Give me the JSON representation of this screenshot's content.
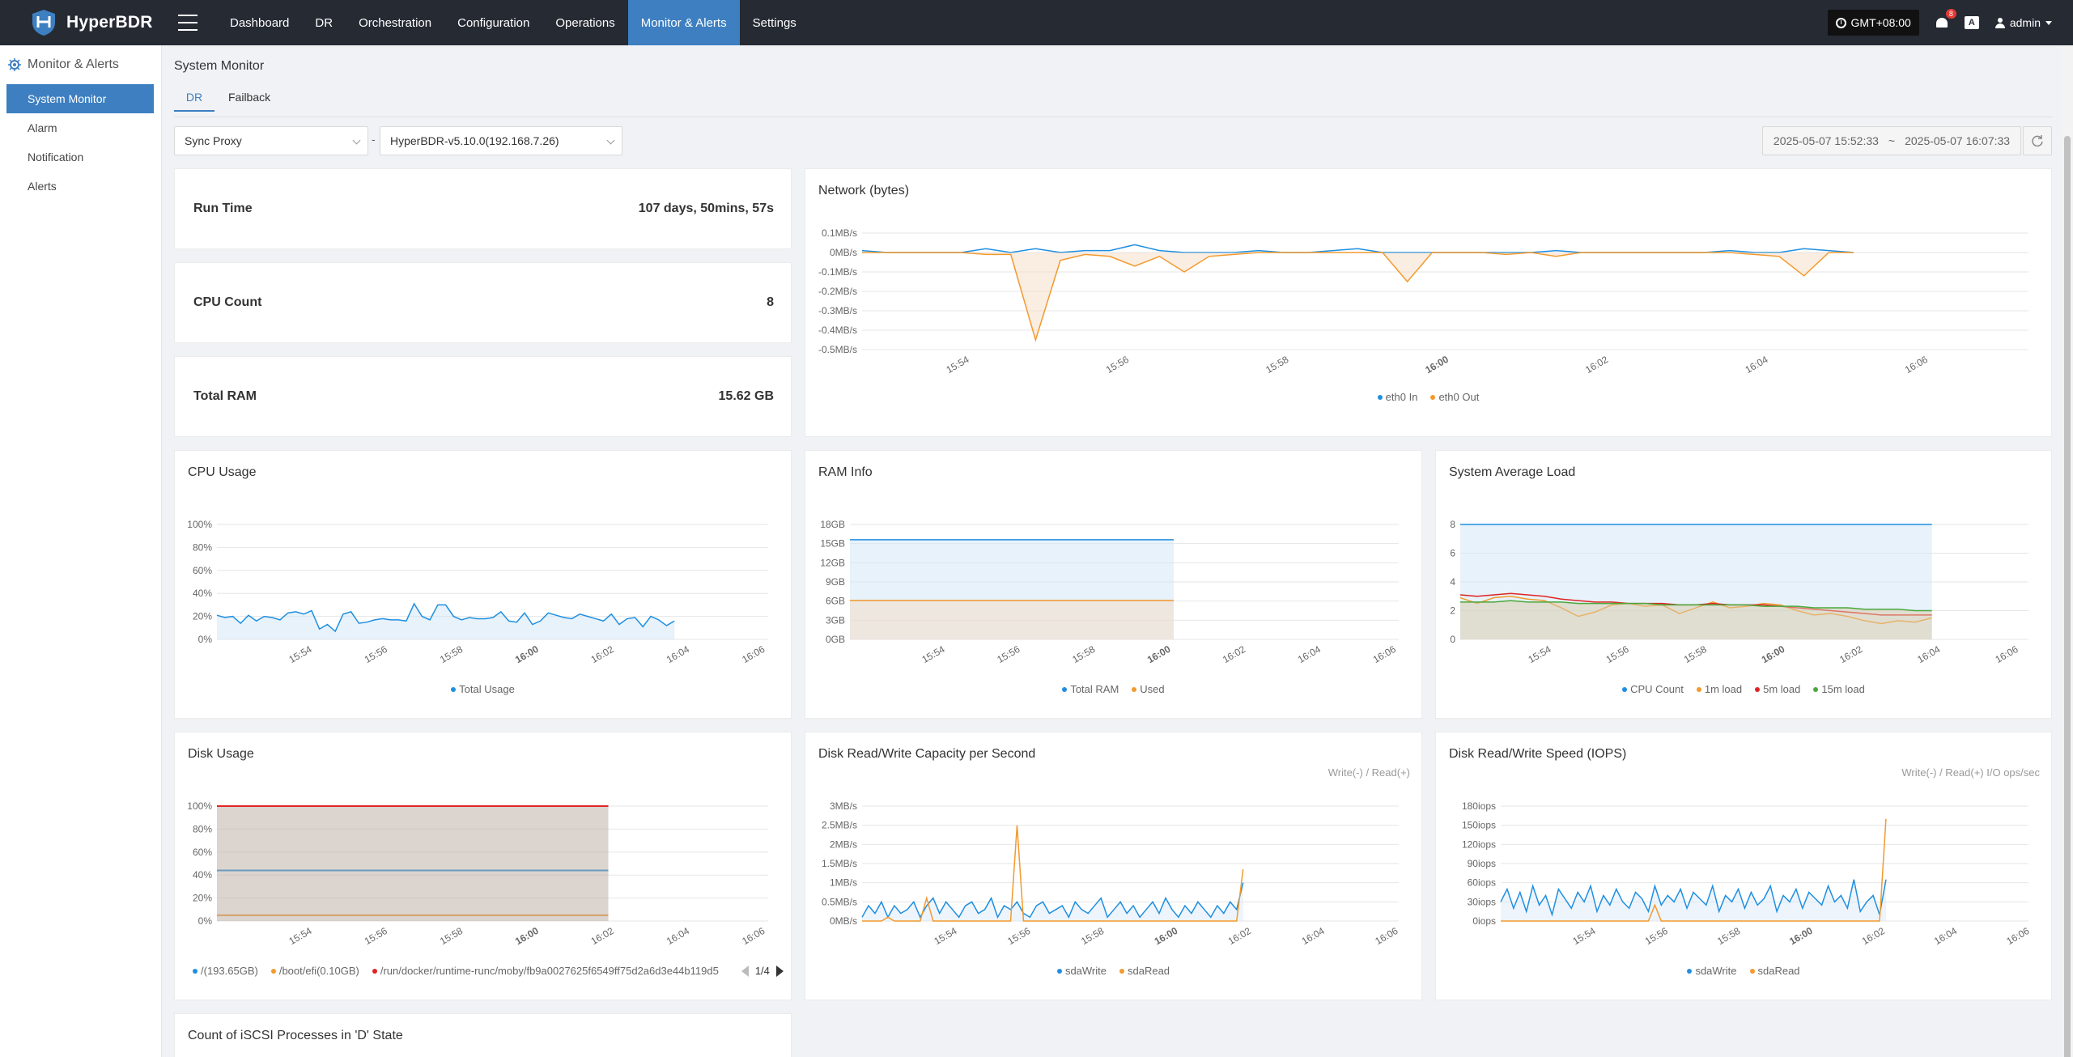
{
  "app": {
    "name": "HyperBDR"
  },
  "nav": [
    {
      "label": "Dashboard",
      "active": false
    },
    {
      "label": "DR",
      "active": false
    },
    {
      "label": "Orchestration",
      "active": false
    },
    {
      "label": "Configuration",
      "active": false
    },
    {
      "label": "Operations",
      "active": false
    },
    {
      "label": "Monitor & Alerts",
      "active": true
    },
    {
      "label": "Settings",
      "active": false
    }
  ],
  "topbar": {
    "timezone": "GMT+08:00",
    "alerts_badge": "8",
    "lang_icon": "A",
    "user": "admin"
  },
  "sidebar": {
    "title": "Monitor & Alerts",
    "items": [
      {
        "label": "System Monitor",
        "active": true
      },
      {
        "label": "Alarm",
        "active": false
      },
      {
        "label": "Notification",
        "active": false
      },
      {
        "label": "Alerts",
        "active": false
      }
    ]
  },
  "page": {
    "title": "System Monitor",
    "tabs": [
      {
        "label": "DR",
        "active": true
      },
      {
        "label": "Failback",
        "active": false
      }
    ],
    "filter": {
      "type_value": "Sync Proxy",
      "host_value": "HyperBDR-v5.10.0(192.168.7.26)",
      "separator": "-"
    },
    "date_range": {
      "start": "2025-05-07 15:52:33",
      "sep": "~",
      "end": "2025-05-07 16:07:33"
    }
  },
  "stats": [
    {
      "label": "Run Time",
      "value": "107 days, 50mins, 57s"
    },
    {
      "label": "CPU Count",
      "value": "8"
    },
    {
      "label": "Total RAM",
      "value": "15.62 GB"
    }
  ],
  "time_ticks": [
    "15:54",
    "15:56",
    "15:58",
    "16:00",
    "16:02",
    "16:04",
    "16:06"
  ],
  "colors": {
    "blue": "#1f8fe0",
    "orange": "#f29a2e",
    "red": "#e02424",
    "green": "#4aa83c",
    "accent": "#3d7fc1"
  },
  "charts": {
    "network": {
      "title": "Network (bytes)",
      "y_ticks": [
        "0.1MB/s",
        "0MB/s",
        "-0.1MB/s",
        "-0.2MB/s",
        "-0.3MB/s",
        "-0.4MB/s",
        "-0.5MB/s"
      ],
      "legend": [
        "eth0 In",
        "eth0 Out"
      ]
    },
    "cpu": {
      "title": "CPU Usage",
      "y_ticks": [
        "100%",
        "80%",
        "60%",
        "40%",
        "20%",
        "0%"
      ],
      "legend": [
        "Total Usage"
      ]
    },
    "ram": {
      "title": "RAM Info",
      "y_ticks": [
        "18GB",
        "15GB",
        "12GB",
        "9GB",
        "6GB",
        "3GB",
        "0GB"
      ],
      "legend": [
        "Total RAM",
        "Used"
      ]
    },
    "load": {
      "title": "System Average Load",
      "y_ticks": [
        "8",
        "6",
        "4",
        "2",
        "0"
      ],
      "legend": [
        "CPU Count",
        "1m load",
        "5m load",
        "15m load"
      ]
    },
    "disk": {
      "title": "Disk Usage",
      "y_ticks": [
        "100%",
        "80%",
        "60%",
        "40%",
        "20%",
        "0%"
      ],
      "legend": [
        "/(193.65GB)",
        "/boot/efi(0.10GB)",
        "/run/docker/runtime-runc/moby/fb9a0027625f6549ff75d2a6d3e44b119d5"
      ],
      "page": "1/4"
    },
    "diskcap": {
      "title": "Disk Read/Write Capacity per Second",
      "subtitle": "Write(-) / Read(+)",
      "y_ticks": [
        "3MB/s",
        "2.5MB/s",
        "2MB/s",
        "1.5MB/s",
        "1MB/s",
        "0.5MB/s",
        "0MB/s"
      ],
      "legend": [
        "sdaWrite",
        "sdaRead"
      ]
    },
    "diskiops": {
      "title": "Disk Read/Write Speed (IOPS)",
      "subtitle": "Write(-) / Read(+) I/O ops/sec",
      "y_ticks": [
        "180iops",
        "150iops",
        "120iops",
        "90iops",
        "60iops",
        "30iops",
        "0iops"
      ],
      "legend": [
        "sdaWrite",
        "sdaRead"
      ]
    },
    "iscsi": {
      "title": "Count of iSCSI Processes in 'D' State"
    }
  },
  "chart_data": [
    {
      "type": "line",
      "title": "Network (bytes)",
      "ylim": [
        -0.5,
        0.1
      ],
      "series": [
        {
          "name": "eth0 In",
          "values": [
            0.01,
            0,
            0,
            0,
            0,
            0.02,
            0,
            0.02,
            0,
            0.01,
            0.01,
            0.04,
            0.01,
            0,
            0,
            0,
            0.01,
            0,
            0,
            0.01,
            0.02,
            0,
            0,
            0,
            0,
            0,
            0,
            0,
            0.01,
            0,
            0,
            0,
            0,
            0,
            0,
            0.01,
            0,
            0,
            0.02,
            0.01,
            0
          ]
        },
        {
          "name": "eth0 Out",
          "values": [
            0,
            0,
            0,
            0,
            0,
            -0.01,
            -0.01,
            -0.45,
            -0.04,
            -0.01,
            -0.02,
            -0.07,
            -0.02,
            -0.1,
            -0.02,
            -0.01,
            0,
            0,
            0,
            0,
            0,
            0,
            -0.15,
            0,
            0,
            0,
            -0.01,
            0,
            -0.02,
            0,
            0,
            0,
            0,
            0,
            0,
            0,
            -0.01,
            -0.02,
            -0.12,
            0,
            0
          ]
        }
      ]
    },
    {
      "type": "line",
      "title": "CPU Usage",
      "ylim": [
        0,
        100
      ],
      "series": [
        {
          "name": "Total Usage",
          "values": [
            21,
            19,
            20,
            14,
            21,
            16,
            20,
            19,
            17,
            23,
            24,
            22,
            25,
            9,
            13,
            7,
            22,
            24,
            14,
            15,
            17,
            18,
            17,
            17,
            16,
            31,
            20,
            17,
            30,
            30,
            20,
            17,
            19,
            18,
            18,
            19,
            24,
            16,
            15,
            23,
            13,
            16,
            23,
            21,
            19,
            18,
            22,
            20,
            18,
            16,
            22,
            13,
            18,
            19,
            11,
            20,
            17,
            12,
            16
          ]
        }
      ]
    },
    {
      "type": "area",
      "title": "RAM Info",
      "ylim": [
        0,
        18
      ],
      "series": [
        {
          "name": "Total RAM",
          "values": [
            15.6,
            15.6
          ]
        },
        {
          "name": "Used",
          "values": [
            6.1,
            6.1
          ]
        }
      ]
    },
    {
      "type": "line",
      "title": "System Average Load",
      "ylim": [
        0,
        8
      ],
      "series": [
        {
          "name": "CPU Count",
          "values": [
            8,
            8
          ]
        },
        {
          "name": "1m load",
          "values": [
            2.9,
            2.5,
            2.9,
            3,
            2.8,
            2.7,
            2.2,
            1.6,
            1.9,
            2.4,
            2.5,
            2.3,
            2.4,
            1.8,
            2.2,
            2.6,
            2.2,
            2.3,
            2.5,
            2.4,
            2.0,
            1.7,
            1.8,
            1.6,
            1.3,
            1.1,
            1.3,
            1.2,
            1.5
          ]
        },
        {
          "name": "5m load",
          "values": [
            3.1,
            3,
            3.1,
            3.2,
            3.1,
            3,
            2.8,
            2.7,
            2.6,
            2.6,
            2.5,
            2.5,
            2.5,
            2.4,
            2.4,
            2.5,
            2.4,
            2.4,
            2.4,
            2.3,
            2.2,
            2.1,
            2.0,
            1.9,
            1.8,
            1.7,
            1.7,
            1.7,
            1.7
          ]
        },
        {
          "name": "15m load",
          "values": [
            2.6,
            2.6,
            2.6,
            2.7,
            2.6,
            2.6,
            2.6,
            2.5,
            2.5,
            2.5,
            2.5,
            2.5,
            2.4,
            2.4,
            2.4,
            2.4,
            2.4,
            2.4,
            2.3,
            2.3,
            2.3,
            2.2,
            2.2,
            2.2,
            2.1,
            2.1,
            2.1,
            2.0,
            2.0
          ]
        }
      ]
    },
    {
      "type": "area",
      "title": "Disk Usage",
      "ylim": [
        0,
        100
      ],
      "series": [
        {
          "name": "/(193.65GB)",
          "values": [
            44,
            44
          ]
        },
        {
          "name": "/boot/efi(0.10GB)",
          "values": [
            5,
            5
          ]
        },
        {
          "name": "/run/docker/runtime-runc/moby/fb9a0027625f6549ff75d2a6d3e44b119d5",
          "values": [
            100,
            100
          ]
        }
      ]
    },
    {
      "type": "line",
      "title": "Disk Read/Write Capacity per Second",
      "ylim": [
        0,
        3
      ],
      "series": [
        {
          "name": "sdaWrite",
          "values": [
            0.1,
            0.4,
            0.2,
            0.5,
            0.1,
            0.4,
            0.2,
            0.3,
            0.5,
            0.1,
            0.4,
            0.6,
            0.2,
            0.5,
            0.3,
            0.1,
            0.4,
            0.5,
            0.2,
            0.3,
            0.6,
            0.1,
            0.4,
            0.3,
            0.5,
            0.2,
            0.1,
            0.4,
            0.5,
            0.2,
            0.3,
            0.4,
            0.1,
            0.5,
            0.3,
            0.2,
            0.4,
            0.6,
            0.1,
            0.3,
            0.5,
            0.2,
            0.4,
            0.1,
            0.3,
            0.5,
            0.2,
            0.6,
            0.3,
            0.1,
            0.4,
            0.2,
            0.5,
            0.3,
            0.1,
            0.4,
            0.2,
            0.5,
            0.3,
            1.0
          ]
        },
        {
          "name": "sdaRead",
          "values": [
            0,
            0,
            0,
            0,
            0.1,
            0,
            0,
            0,
            0,
            0,
            0.6,
            0,
            0,
            0,
            0,
            0,
            0,
            0,
            0,
            0,
            0,
            0,
            0,
            0,
            2.5,
            0,
            0,
            0,
            0,
            0,
            0,
            0,
            0,
            0,
            0,
            0,
            0,
            0,
            0,
            0,
            0,
            0,
            0,
            0,
            0,
            0,
            0,
            0,
            0,
            0,
            0,
            0,
            0,
            0,
            0,
            0,
            0,
            0,
            0,
            1.35
          ]
        }
      ]
    },
    {
      "type": "line",
      "title": "Disk Read/Write Speed (IOPS)",
      "ylim": [
        0,
        180
      ],
      "series": [
        {
          "name": "sdaWrite",
          "values": [
            30,
            50,
            20,
            45,
            15,
            55,
            25,
            40,
            10,
            50,
            35,
            20,
            45,
            30,
            55,
            15,
            40,
            25,
            50,
            30,
            20,
            45,
            35,
            15,
            55,
            25,
            40,
            30,
            50,
            20,
            45,
            35,
            25,
            55,
            15,
            40,
            30,
            50,
            20,
            45,
            25,
            35,
            55,
            15,
            40,
            30,
            50,
            20,
            45,
            35,
            25,
            55,
            30,
            40,
            20,
            65,
            15,
            30,
            40,
            10,
            65
          ]
        },
        {
          "name": "sdaRead",
          "values": [
            0,
            0,
            0,
            0,
            0,
            0,
            0,
            0,
            0,
            0,
            0,
            0,
            0,
            0,
            0,
            0,
            0,
            0,
            0,
            0,
            0,
            0,
            0,
            0,
            25,
            0,
            0,
            0,
            0,
            0,
            0,
            0,
            0,
            0,
            0,
            0,
            0,
            0,
            0,
            0,
            0,
            0,
            0,
            0,
            0,
            0,
            0,
            0,
            0,
            0,
            0,
            0,
            0,
            0,
            0,
            0,
            0,
            0,
            0,
            0,
            160
          ]
        }
      ]
    }
  ]
}
